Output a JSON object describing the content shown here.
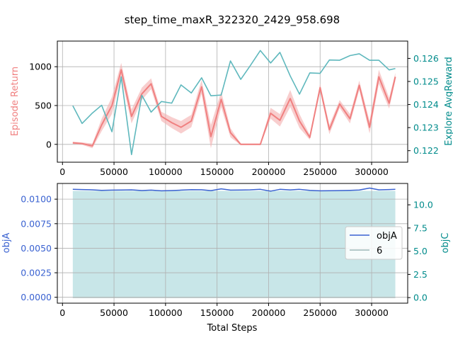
{
  "colors": {
    "episode_return": "#f08080",
    "episode_band": "#f4b4b4",
    "explore": "#5fb8bd",
    "explore_axis": "#008b8b",
    "objA": "#3a62d1",
    "objC_fill": "#b6dde0",
    "legend_6": "#9eb8b8",
    "grid": "#b0b0b0",
    "frame": "#000000"
  },
  "chart_data": [
    {
      "type": "line",
      "title": "step_time_maxR_322320_2429_958.698",
      "xlabel": "",
      "xlim": [
        -5000,
        335000
      ],
      "xticks": [
        0,
        50000,
        100000,
        150000,
        200000,
        250000,
        300000
      ],
      "xtick_labels": [
        "0",
        "50000",
        "100000",
        "150000",
        "200000",
        "250000",
        "300000"
      ],
      "grid": true,
      "y_left": {
        "label": "Episode Return",
        "lim": [
          -230,
          1330
        ],
        "ticks": [
          0,
          500,
          1000
        ],
        "tick_labels": [
          "0",
          "500",
          "1000"
        ]
      },
      "y_right": {
        "label": "Explore AvgReward",
        "lim": [
          0.1215,
          0.12675
        ],
        "ticks": [
          0.122,
          0.123,
          0.124,
          0.125,
          0.126
        ],
        "tick_labels": [
          "0.122",
          "0.123",
          "0.124",
          "0.125",
          "0.126"
        ]
      },
      "x": [
        10000,
        19000,
        29000,
        38000,
        48000,
        57000,
        67000,
        77000,
        86000,
        96000,
        106000,
        115000,
        125000,
        135000,
        144000,
        154000,
        163000,
        173000,
        182000,
        192000,
        202000,
        211000,
        221000,
        230000,
        240000,
        250000,
        259000,
        269000,
        279000,
        288000,
        298000,
        307000,
        317000,
        323000
      ],
      "series": [
        {
          "axis": "left",
          "values": [
            20,
            10,
            -20,
            250,
            500,
            960,
            360,
            650,
            780,
            360,
            280,
            220,
            300,
            740,
            100,
            580,
            150,
            0,
            0,
            0,
            400,
            310,
            590,
            300,
            90,
            730,
            190,
            520,
            330,
            760,
            220,
            870,
            530,
            870
          ],
          "band_half_width": [
            15,
            15,
            30,
            80,
            110,
            90,
            90,
            80,
            70,
            60,
            70,
            80,
            80,
            90,
            150,
            100,
            60,
            10,
            10,
            10,
            70,
            80,
            110,
            90,
            30,
            50,
            60,
            50,
            60,
            60,
            80,
            90,
            70,
            50
          ]
        },
        {
          "axis": "right",
          "values": [
            0.12395,
            0.12318,
            0.12363,
            0.12397,
            0.12282,
            0.1252,
            0.12183,
            0.1244,
            0.12367,
            0.12413,
            0.12406,
            0.12485,
            0.1245,
            0.12516,
            0.12438,
            0.12441,
            0.12589,
            0.12509,
            0.12567,
            0.12634,
            0.1258,
            0.12626,
            0.12524,
            0.12445,
            0.12537,
            0.12535,
            0.12593,
            0.12592,
            0.12612,
            0.1262,
            0.12592,
            0.12592,
            0.1255,
            0.12556
          ]
        }
      ]
    },
    {
      "type": "area",
      "xlabel": "Total Steps",
      "xlim": [
        -5000,
        335000
      ],
      "xticks": [
        0,
        50000,
        100000,
        150000,
        200000,
        250000,
        300000
      ],
      "xtick_labels": [
        "0",
        "50000",
        "100000",
        "150000",
        "200000",
        "250000",
        "300000"
      ],
      "grid": true,
      "y_left": {
        "label": "objA",
        "lim": [
          -0.0006,
          0.0116
        ],
        "ticks": [
          0.0,
          0.0025,
          0.005,
          0.0075,
          0.01
        ],
        "tick_labels": [
          "0.0000",
          "0.0025",
          "0.0050",
          "0.0075",
          "0.0100"
        ]
      },
      "y_right": {
        "label": "objC",
        "lim": [
          -0.6,
          12.3
        ],
        "ticks": [
          0.0,
          2.5,
          5.0,
          7.5,
          10.0
        ],
        "tick_labels": [
          "0.0",
          "2.5",
          "5.0",
          "7.5",
          "10.0"
        ]
      },
      "legend": {
        "placement": "center-right",
        "entries": [
          "objA",
          "6"
        ]
      },
      "x": [
        10000,
        19000,
        29000,
        38000,
        48000,
        57000,
        67000,
        77000,
        86000,
        96000,
        106000,
        115000,
        125000,
        135000,
        144000,
        154000,
        163000,
        173000,
        182000,
        192000,
        202000,
        211000,
        221000,
        230000,
        240000,
        250000,
        259000,
        269000,
        279000,
        288000,
        298000,
        307000,
        317000,
        323000
      ],
      "series": [
        {
          "name": "objA",
          "axis": "left",
          "values": [
            0.011,
            0.01098,
            0.01095,
            0.0109,
            0.01092,
            0.01093,
            0.01095,
            0.01088,
            0.01092,
            0.01085,
            0.01088,
            0.01092,
            0.01097,
            0.01096,
            0.01087,
            0.01105,
            0.01092,
            0.01093,
            0.01095,
            0.011,
            0.01082,
            0.011,
            0.01094,
            0.011,
            0.0109,
            0.01085,
            0.01086,
            0.01088,
            0.0109,
            0.01093,
            0.01113,
            0.01095,
            0.01098,
            0.011
          ]
        },
        {
          "name": "6",
          "axis": "right",
          "values": [
            11.5,
            11.5,
            11.5,
            11.5,
            11.5,
            11.5,
            11.5,
            11.5,
            11.5,
            11.5,
            11.5,
            11.5,
            11.5,
            11.5,
            11.5,
            11.5,
            11.5,
            11.5,
            11.5,
            11.5,
            11.5,
            11.5,
            11.5,
            11.5,
            11.5,
            11.5,
            11.5,
            11.5,
            11.5,
            11.5,
            11.5,
            11.5,
            11.5,
            11.5
          ]
        }
      ]
    }
  ]
}
